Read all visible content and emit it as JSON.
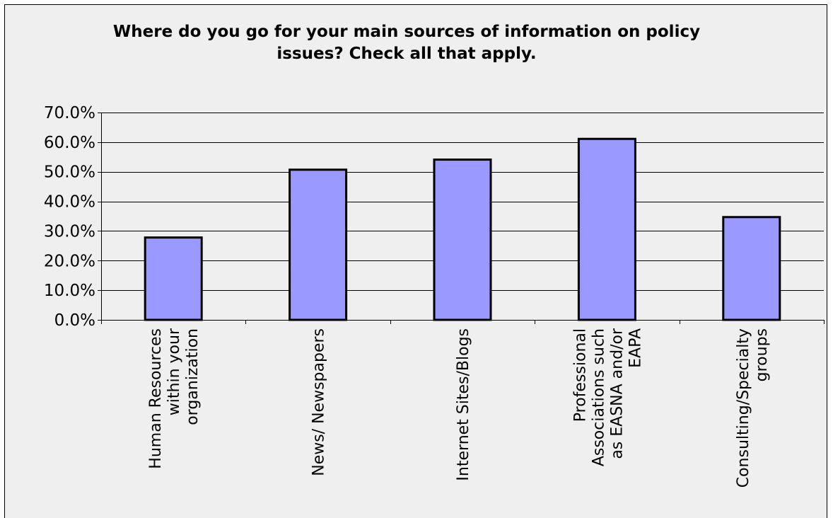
{
  "chart_data": {
    "type": "bar",
    "title": "Where do you go for your main sources of information on policy issues? Check all that apply.",
    "xlabel": "",
    "ylabel": "",
    "categories": [
      "Human Resources within your organization",
      "News/ Newspapers",
      "Internet Sites/Blogs",
      "Professional Associations such as EASNA and/or EAPA",
      "Consulting/Specialty groups"
    ],
    "category_label_lines": [
      [
        "Human Resources",
        "within your",
        "organization"
      ],
      [
        "News/ Newspapers"
      ],
      [
        "Internet Sites/Blogs"
      ],
      [
        "Professional",
        "Associations such",
        "as EASNA and/or",
        "EAPA"
      ],
      [
        "Consulting/Specialty",
        "groups"
      ]
    ],
    "values": [
      27.8,
      50.7,
      54.1,
      61.1,
      34.7
    ],
    "ylim": [
      0,
      70
    ],
    "yticks": [
      0,
      10,
      20,
      30,
      40,
      50,
      60,
      70
    ],
    "ytick_labels": [
      "0.0%",
      "10.0%",
      "20.0%",
      "30.0%",
      "40.0%",
      "50.0%",
      "60.0%",
      "70.0%"
    ],
    "grid": true,
    "legend": "none",
    "colors": {
      "bar_fill": "#9999ff",
      "bar_stroke": "#000000",
      "plot_background": "#efefef",
      "gridline": "#000000"
    }
  }
}
